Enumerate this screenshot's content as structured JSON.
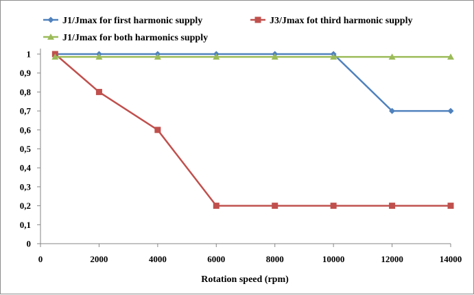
{
  "chart_data": {
    "type": "line",
    "title": "",
    "xlabel": "Rotation speed (rpm)",
    "ylabel": "",
    "xlim": [
      0,
      14000
    ],
    "ylim": [
      0,
      1
    ],
    "x_ticks": [
      0,
      2000,
      4000,
      6000,
      8000,
      10000,
      12000,
      14000
    ],
    "x_tick_labels": [
      "0",
      "2000",
      "4000",
      "6000",
      "8000",
      "10000",
      "12000",
      "14000"
    ],
    "y_ticks": [
      0,
      0.1,
      0.2,
      0.3,
      0.4,
      0.5,
      0.6,
      0.7,
      0.8,
      0.9,
      1
    ],
    "y_tick_labels": [
      "0",
      "0,1",
      "0,2",
      "0,3",
      "0,4",
      "0,5",
      "0,6",
      "0,7",
      "0,8",
      "0,9",
      "1"
    ],
    "grid": false,
    "legend_position": "top",
    "series": [
      {
        "name": "J1/Jmax for first harmonic supply",
        "color": "#4f81bd",
        "marker": "diamond",
        "x": [
          500,
          2000,
          4000,
          6000,
          8000,
          10000,
          12000,
          14000
        ],
        "values": [
          1,
          1,
          1,
          1,
          1,
          1,
          0.7,
          0.7
        ]
      },
      {
        "name": "J3/Jmax fot third harmonic supply",
        "color": "#c0504d",
        "marker": "square",
        "x": [
          500,
          2000,
          4000,
          6000,
          8000,
          10000,
          12000,
          14000
        ],
        "values": [
          1,
          0.8,
          0.6,
          0.2,
          0.2,
          0.2,
          0.2,
          0.2
        ]
      },
      {
        "name": "J1/Jmax for both harmonics supply",
        "color": "#9bbb59",
        "marker": "triangle",
        "x": [
          500,
          2000,
          4000,
          6000,
          8000,
          10000,
          12000,
          14000
        ],
        "values": [
          0.985,
          0.985,
          0.985,
          0.985,
          0.985,
          0.985,
          0.985,
          0.985
        ]
      }
    ]
  }
}
